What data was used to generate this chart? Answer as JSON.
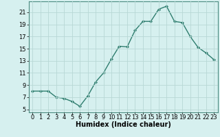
{
  "x": [
    0,
    1,
    2,
    3,
    4,
    5,
    6,
    7,
    8,
    9,
    10,
    11,
    12,
    13,
    14,
    15,
    16,
    17,
    18,
    19,
    20,
    21,
    22,
    23
  ],
  "y": [
    8,
    8,
    8,
    7,
    6.8,
    6.3,
    5.5,
    7.2,
    9.5,
    11,
    13.3,
    15.4,
    15.3,
    18,
    19.5,
    19.5,
    21.5,
    22,
    19.5,
    19.3,
    17,
    15.2,
    14.3,
    13.2
  ],
  "line_color": "#2e7d6e",
  "marker": "D",
  "marker_size": 2,
  "bg_color": "#d6f0ef",
  "grid_color": "#b8d8d5",
  "xlabel": "Humidex (Indice chaleur)",
  "xlabel_fontsize": 7,
  "yticks": [
    5,
    7,
    9,
    11,
    13,
    15,
    17,
    19,
    21
  ],
  "xticks": [
    0,
    1,
    2,
    3,
    4,
    5,
    6,
    7,
    8,
    9,
    10,
    11,
    12,
    13,
    14,
    15,
    16,
    17,
    18,
    19,
    20,
    21,
    22,
    23
  ],
  "ylim": [
    4.5,
    22.8
  ],
  "xlim": [
    -0.5,
    23.5
  ],
  "tick_fontsize": 6,
  "line_width": 1.0
}
